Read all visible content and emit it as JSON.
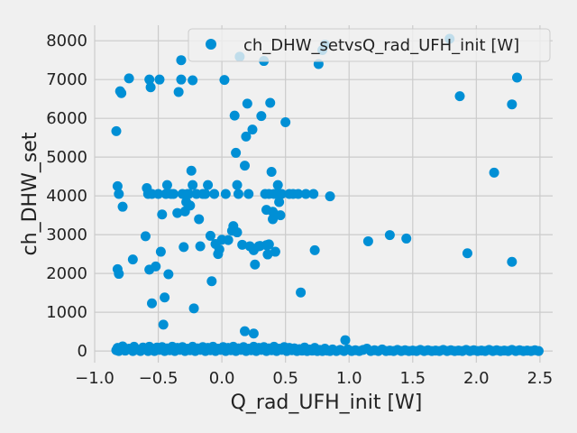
{
  "chart_data": {
    "type": "scatter",
    "title": "",
    "xlabel": "Q_rad_UFH_init [W]",
    "ylabel": "ch_DHW_set",
    "xlim": [
      -1.0,
      2.6
    ],
    "ylim": [
      -300,
      8400
    ],
    "xticks": [
      -1.0,
      -0.5,
      0.0,
      0.5,
      1.0,
      1.5,
      2.0,
      2.5
    ],
    "xtick_labels": [
      "−1.0",
      "−0.5",
      "0.0",
      "0.5",
      "1.0",
      "1.5",
      "2.0",
      "2.5"
    ],
    "yticks": [
      0,
      1000,
      2000,
      3000,
      4000,
      5000,
      6000,
      7000,
      8000
    ],
    "ytick_labels": [
      "0",
      "1000",
      "2000",
      "3000",
      "4000",
      "5000",
      "6000",
      "7000",
      "8000"
    ],
    "grid": true,
    "legend_position": "top-right",
    "marker_color": "#008fd5",
    "series": [
      {
        "name": "ch_DHW_setvsQ_rad_UFH_init [W]",
        "points": [
          [
            -0.83,
            5670
          ],
          [
            -0.82,
            4250
          ],
          [
            -0.81,
            4050
          ],
          [
            -0.8,
            6700
          ],
          [
            -0.79,
            6650
          ],
          [
            -0.78,
            3720
          ],
          [
            -0.82,
            2110
          ],
          [
            -0.81,
            1990
          ],
          [
            -0.73,
            7030
          ],
          [
            -0.7,
            2360
          ],
          [
            -0.6,
            2960
          ],
          [
            -0.59,
            4200
          ],
          [
            -0.58,
            4050
          ],
          [
            -0.57,
            7000
          ],
          [
            -0.56,
            6800
          ],
          [
            -0.55,
            1230
          ],
          [
            -0.55,
            4050
          ],
          [
            -0.57,
            2100
          ],
          [
            -0.52,
            2180
          ],
          [
            -0.5,
            4050
          ],
          [
            -0.49,
            7000
          ],
          [
            -0.48,
            2560
          ],
          [
            -0.47,
            3520
          ],
          [
            -0.46,
            680
          ],
          [
            -0.45,
            1380
          ],
          [
            -0.44,
            4050
          ],
          [
            -0.43,
            4280
          ],
          [
            -0.42,
            1980
          ],
          [
            -0.4,
            4050
          ],
          [
            -0.38,
            4050
          ],
          [
            -0.35,
            3560
          ],
          [
            -0.34,
            6680
          ],
          [
            -0.32,
            7500
          ],
          [
            -0.32,
            7000
          ],
          [
            -0.31,
            4050
          ],
          [
            -0.3,
            2680
          ],
          [
            -0.29,
            3600
          ],
          [
            -0.28,
            3840
          ],
          [
            -0.27,
            4050
          ],
          [
            -0.26,
            4050
          ],
          [
            -0.25,
            3750
          ],
          [
            -0.24,
            4650
          ],
          [
            -0.23,
            4280
          ],
          [
            -0.22,
            1100
          ],
          [
            -0.23,
            6980
          ],
          [
            -0.2,
            4050
          ],
          [
            -0.18,
            3400
          ],
          [
            -0.17,
            2700
          ],
          [
            -0.15,
            4050
          ],
          [
            -0.13,
            4050
          ],
          [
            -0.11,
            4280
          ],
          [
            -0.09,
            2970
          ],
          [
            -0.08,
            1800
          ],
          [
            -0.06,
            4050
          ],
          [
            -0.05,
            2760
          ],
          [
            -0.03,
            2500
          ],
          [
            -0.02,
            2620
          ],
          [
            0.0,
            2870
          ],
          [
            0.02,
            6990
          ],
          [
            0.03,
            4050
          ],
          [
            0.05,
            2860
          ],
          [
            0.08,
            3100
          ],
          [
            0.09,
            3220
          ],
          [
            0.1,
            6070
          ],
          [
            0.11,
            5110
          ],
          [
            0.12,
            4280
          ],
          [
            0.13,
            4050
          ],
          [
            0.12,
            3060
          ],
          [
            0.14,
            7590
          ],
          [
            0.16,
            2740
          ],
          [
            0.18,
            4780
          ],
          [
            0.19,
            5530
          ],
          [
            0.2,
            6380
          ],
          [
            0.21,
            4050
          ],
          [
            0.22,
            2700
          ],
          [
            0.24,
            5710
          ],
          [
            0.25,
            2600
          ],
          [
            0.26,
            2230
          ],
          [
            0.29,
            2700
          ],
          [
            0.3,
            2710
          ],
          [
            0.31,
            6060
          ],
          [
            0.33,
            7480
          ],
          [
            0.34,
            4050
          ],
          [
            0.35,
            3640
          ],
          [
            0.35,
            2730
          ],
          [
            0.36,
            2730
          ],
          [
            0.36,
            2490
          ],
          [
            0.37,
            4050
          ],
          [
            0.37,
            2750
          ],
          [
            0.38,
            6400
          ],
          [
            0.39,
            4620
          ],
          [
            0.4,
            3590
          ],
          [
            0.4,
            3400
          ],
          [
            0.41,
            4050
          ],
          [
            0.42,
            2560
          ],
          [
            0.42,
            3510
          ],
          [
            0.43,
            4050
          ],
          [
            0.44,
            4280
          ],
          [
            0.45,
            3840
          ],
          [
            0.46,
            3500
          ],
          [
            0.47,
            4050
          ],
          [
            0.5,
            5900
          ],
          [
            0.53,
            4050
          ],
          [
            0.56,
            4050
          ],
          [
            0.6,
            4050
          ],
          [
            0.62,
            1510
          ],
          [
            0.66,
            4050
          ],
          [
            0.72,
            4050
          ],
          [
            0.73,
            2600
          ],
          [
            0.76,
            7400
          ],
          [
            0.79,
            7760
          ],
          [
            0.81,
            7900
          ],
          [
            0.85,
            3990
          ],
          [
            1.15,
            2830
          ],
          [
            1.32,
            2990
          ],
          [
            1.45,
            2900
          ],
          [
            1.79,
            8050
          ],
          [
            1.87,
            6570
          ],
          [
            1.93,
            2520
          ],
          [
            2.14,
            4600
          ],
          [
            2.28,
            6360
          ],
          [
            2.28,
            2300
          ],
          [
            2.32,
            7050
          ],
          [
            0.18,
            510
          ],
          [
            0.25,
            450
          ],
          [
            0.97,
            280
          ],
          [
            -0.83,
            20
          ],
          [
            -0.82,
            80
          ],
          [
            -0.81,
            0
          ],
          [
            -0.79,
            50
          ],
          [
            -0.78,
            120
          ],
          [
            -0.76,
            10
          ],
          [
            -0.73,
            60
          ],
          [
            -0.7,
            0
          ],
          [
            -0.69,
            110
          ],
          [
            -0.66,
            30
          ],
          [
            -0.64,
            0
          ],
          [
            -0.62,
            90
          ],
          [
            -0.6,
            40
          ],
          [
            -0.58,
            0
          ],
          [
            -0.57,
            110
          ],
          [
            -0.55,
            60
          ],
          [
            -0.53,
            0
          ],
          [
            -0.51,
            90
          ],
          [
            -0.49,
            30
          ],
          [
            -0.47,
            100
          ],
          [
            -0.45,
            0
          ],
          [
            -0.43,
            70
          ],
          [
            -0.41,
            20
          ],
          [
            -0.39,
            110
          ],
          [
            -0.37,
            0
          ],
          [
            -0.35,
            80
          ],
          [
            -0.33,
            30
          ],
          [
            -0.31,
            100
          ],
          [
            -0.29,
            0
          ],
          [
            -0.27,
            60
          ],
          [
            -0.25,
            20
          ],
          [
            -0.23,
            110
          ],
          [
            -0.21,
            0
          ],
          [
            -0.19,
            70
          ],
          [
            -0.17,
            30
          ],
          [
            -0.15,
            100
          ],
          [
            -0.13,
            0
          ],
          [
            -0.11,
            80
          ],
          [
            -0.09,
            20
          ],
          [
            -0.07,
            110
          ],
          [
            -0.05,
            0
          ],
          [
            -0.03,
            60
          ],
          [
            -0.01,
            30
          ],
          [
            0.01,
            100
          ],
          [
            0.03,
            0
          ],
          [
            0.05,
            80
          ],
          [
            0.07,
            20
          ],
          [
            0.09,
            110
          ],
          [
            0.11,
            0
          ],
          [
            0.13,
            70
          ],
          [
            0.15,
            30
          ],
          [
            0.17,
            100
          ],
          [
            0.19,
            0
          ],
          [
            0.21,
            60
          ],
          [
            0.23,
            20
          ],
          [
            0.25,
            110
          ],
          [
            0.27,
            0
          ],
          [
            0.29,
            80
          ],
          [
            0.31,
            30
          ],
          [
            0.33,
            100
          ],
          [
            0.35,
            0
          ],
          [
            0.37,
            70
          ],
          [
            0.39,
            20
          ],
          [
            0.41,
            110
          ],
          [
            0.43,
            0
          ],
          [
            0.45,
            60
          ],
          [
            0.47,
            30
          ],
          [
            0.49,
            100
          ],
          [
            0.51,
            0
          ],
          [
            0.53,
            80
          ],
          [
            0.55,
            20
          ],
          [
            0.57,
            70
          ],
          [
            0.59,
            0
          ],
          [
            0.61,
            50
          ],
          [
            0.63,
            10
          ],
          [
            0.65,
            90
          ],
          [
            0.67,
            0
          ],
          [
            0.69,
            40
          ],
          [
            0.71,
            10
          ],
          [
            0.73,
            80
          ],
          [
            0.75,
            0
          ],
          [
            0.77,
            30
          ],
          [
            0.79,
            0
          ],
          [
            0.81,
            60
          ],
          [
            0.83,
            10
          ],
          [
            0.85,
            0
          ],
          [
            0.87,
            40
          ],
          [
            0.9,
            0
          ],
          [
            0.93,
            30
          ],
          [
            0.96,
            0
          ],
          [
            0.99,
            40
          ],
          [
            1.02,
            0
          ],
          [
            1.05,
            20
          ],
          [
            1.08,
            0
          ],
          [
            1.11,
            30
          ],
          [
            1.14,
            60
          ],
          [
            1.17,
            0
          ],
          [
            1.2,
            20
          ],
          [
            1.23,
            0
          ],
          [
            1.26,
            40
          ],
          [
            1.29,
            0
          ],
          [
            1.32,
            10
          ],
          [
            1.35,
            0
          ],
          [
            1.38,
            30
          ],
          [
            1.41,
            0
          ],
          [
            1.44,
            20
          ],
          [
            1.47,
            0
          ],
          [
            1.5,
            10
          ],
          [
            1.53,
            0
          ],
          [
            1.56,
            30
          ],
          [
            1.59,
            0
          ],
          [
            1.62,
            20
          ],
          [
            1.65,
            0
          ],
          [
            1.68,
            10
          ],
          [
            1.71,
            0
          ],
          [
            1.74,
            30
          ],
          [
            1.77,
            0
          ],
          [
            1.8,
            20
          ],
          [
            1.83,
            0
          ],
          [
            1.86,
            10
          ],
          [
            1.89,
            0
          ],
          [
            1.92,
            30
          ],
          [
            1.95,
            0
          ],
          [
            1.98,
            20
          ],
          [
            2.01,
            0
          ],
          [
            2.04,
            10
          ],
          [
            2.07,
            0
          ],
          [
            2.1,
            30
          ],
          [
            2.13,
            0
          ],
          [
            2.16,
            20
          ],
          [
            2.19,
            0
          ],
          [
            2.22,
            10
          ],
          [
            2.25,
            0
          ],
          [
            2.28,
            30
          ],
          [
            2.31,
            0
          ],
          [
            2.34,
            20
          ],
          [
            2.37,
            0
          ],
          [
            2.4,
            10
          ],
          [
            2.43,
            0
          ],
          [
            2.46,
            20
          ],
          [
            2.49,
            0
          ]
        ]
      }
    ]
  }
}
